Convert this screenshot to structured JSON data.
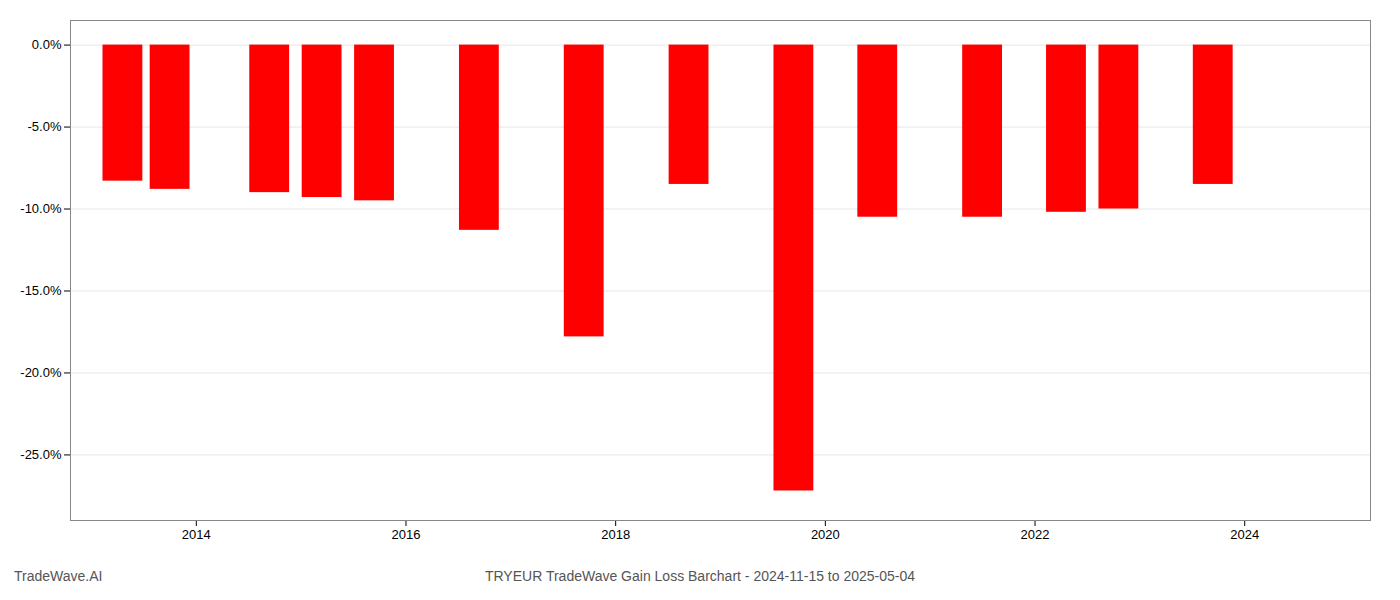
{
  "chart_data": {
    "type": "bar",
    "title": "TRYEUR TradeWave Gain Loss Barchart - 2024-11-15 to 2025-05-04",
    "annotations": [
      "TradeWave.AI"
    ],
    "x": [
      2013.3,
      2013.75,
      2014.7,
      2015.2,
      2015.7,
      2016.7,
      2017.7,
      2018.7,
      2019.7,
      2020.5,
      2021.5,
      2022.3,
      2022.8,
      2023.7
    ],
    "values": [
      -8.3,
      -8.8,
      -9.0,
      -9.3,
      -9.5,
      -11.3,
      -17.8,
      -8.5,
      -27.2,
      -10.5,
      -10.5,
      -10.2,
      -10.0,
      -8.5
    ],
    "color": "#ff0000",
    "xlim": [
      2012.8,
      2025.2
    ],
    "xticks": [
      2014,
      2016,
      2018,
      2020,
      2022,
      2024
    ],
    "ylim": [
      -29,
      1.5
    ],
    "yticks": [
      {
        "value": 0.0,
        "label": "0.0%"
      },
      {
        "value": -5.0,
        "label": "-5.0%"
      },
      {
        "value": -10.0,
        "label": "-10.0%"
      },
      {
        "value": -15.0,
        "label": "-15.0%"
      },
      {
        "value": -20.0,
        "label": "-20.0%"
      },
      {
        "value": -25.0,
        "label": "-25.0%"
      }
    ],
    "grid": true
  }
}
